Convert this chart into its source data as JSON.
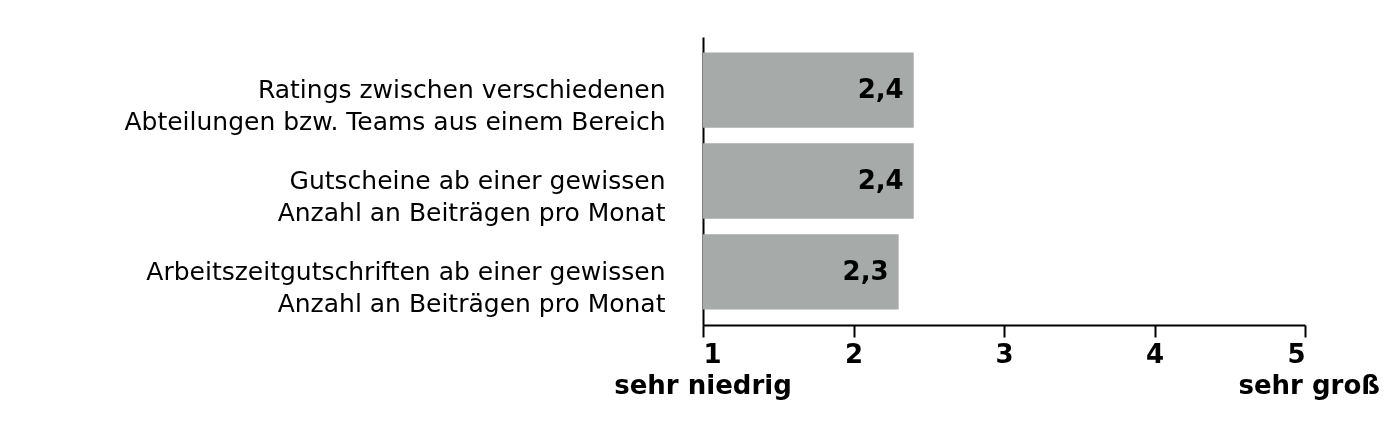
{
  "chart_data": {
    "type": "bar",
    "orientation": "horizontal",
    "categories": [
      "Ratings zwischen verschiedenen\nAbteilungen bzw. Teams aus einem Bereich",
      "Gutscheine ab einer gewissen\nAnzahl an Beiträgen pro Monat",
      "Arbeitszeitgutschriften ab einer gewissen\nAnzahl an Beiträgen pro Monat"
    ],
    "values": [
      2.4,
      2.4,
      2.3
    ],
    "value_labels": [
      "2,4",
      "2,4",
      "2,3"
    ],
    "color": "#a6aaa9",
    "xlim": [
      1,
      5
    ],
    "xticks": [
      1,
      2,
      3,
      4,
      5
    ],
    "grid": false,
    "annotations": [
      "sehr niedrig",
      "sehr groß"
    ]
  }
}
